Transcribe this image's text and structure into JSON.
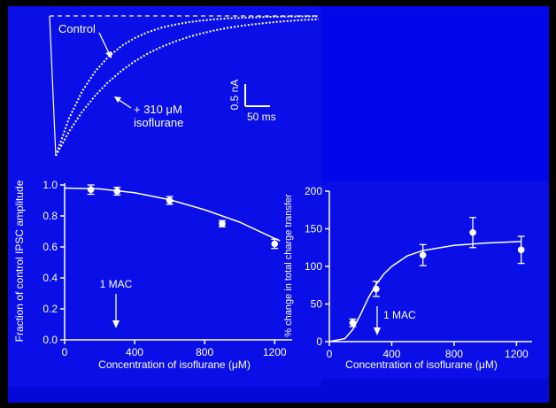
{
  "colors": {
    "background": "#0A0FE8",
    "ink": "#ffffff",
    "frame": "#000000"
  },
  "chart_data": [
    {
      "type": "line",
      "panel": "IPSC traces",
      "series": [
        {
          "name": "Control",
          "t": [
            0,
            1,
            2,
            3,
            4,
            5,
            6,
            7,
            8,
            9,
            10,
            11,
            12,
            13,
            14,
            15,
            16,
            17,
            18,
            19,
            20
          ],
          "current": [
            -1.0,
            -0.735,
            -0.54,
            -0.397,
            -0.292,
            -0.215,
            -0.158,
            -0.116,
            -0.085,
            -0.063,
            -0.046,
            -0.034,
            -0.025,
            -0.018,
            -0.014,
            -0.01,
            -0.007,
            -0.005,
            -0.004,
            -0.003,
            -0.002
          ]
        },
        {
          "name": "+ 310 μM isoflurane",
          "t": [
            0,
            1,
            2,
            3,
            4,
            5,
            6,
            7,
            8,
            9,
            10,
            11,
            12,
            13,
            14,
            15,
            16,
            17,
            18,
            19,
            20
          ],
          "current": [
            -1.0,
            -0.829,
            -0.687,
            -0.57,
            -0.472,
            -0.392,
            -0.325,
            -0.269,
            -0.223,
            -0.185,
            -0.153,
            -0.127,
            -0.105,
            -0.087,
            -0.072,
            -0.06,
            -0.05,
            -0.041,
            -0.034,
            -0.028,
            -0.024
          ]
        }
      ],
      "labels": {
        "control": "Control",
        "iso_line1": "+ 310 μM",
        "iso_line2": "isoflurane"
      },
      "scale_bar": {
        "amplitude": "0.5 nA",
        "time": "50 ms"
      }
    },
    {
      "type": "scatter",
      "panel": "amplitude",
      "x": [
        150,
        300,
        600,
        900,
        1200
      ],
      "y": [
        0.97,
        0.96,
        0.9,
        0.75,
        0.62
      ],
      "err": [
        0.03,
        0.025,
        0.025,
        0.02,
        0.03
      ],
      "fit_x": [
        0,
        200,
        400,
        600,
        800,
        1000,
        1200,
        1230
      ],
      "fit_y": [
        0.98,
        0.975,
        0.95,
        0.905,
        0.84,
        0.76,
        0.655,
        0.64
      ],
      "xlabel": "Concentration of isoflurane (μM)",
      "ylabel": "Fraction of control IPSC amplitude",
      "xlim": [
        0,
        1300
      ],
      "ylim": [
        0,
        1.0
      ],
      "xticks": [
        "0",
        "400",
        "800",
        "1200"
      ],
      "yticks": [
        "0.0",
        "0.2",
        "0.4",
        "0.6",
        "0.8",
        "1.0"
      ],
      "annotation": "1 MAC",
      "annotation_x": 310
    },
    {
      "type": "scatter",
      "panel": "charge transfer",
      "x": [
        150,
        300,
        600,
        920,
        1230
      ],
      "y": [
        25,
        70,
        115,
        145,
        122
      ],
      "err": [
        5,
        10,
        14,
        20,
        18
      ],
      "fit_x": [
        0,
        100,
        150,
        200,
        250,
        300,
        350,
        400,
        500,
        600,
        800,
        1000,
        1230
      ],
      "fit_y": [
        0,
        4,
        16,
        36,
        58,
        76,
        90,
        100,
        114,
        121,
        128,
        131,
        133
      ],
      "xlabel": "Concentration of isoflurane (μM)",
      "ylabel": "% change in total charge transfer",
      "xlim": [
        0,
        1300
      ],
      "ylim": [
        0,
        200
      ],
      "xticks": [
        "0",
        "400",
        "800",
        "1200"
      ],
      "yticks": [
        "0",
        "50",
        "100",
        "150",
        "200"
      ],
      "annotation": "1 MAC",
      "annotation_x": 310
    }
  ]
}
